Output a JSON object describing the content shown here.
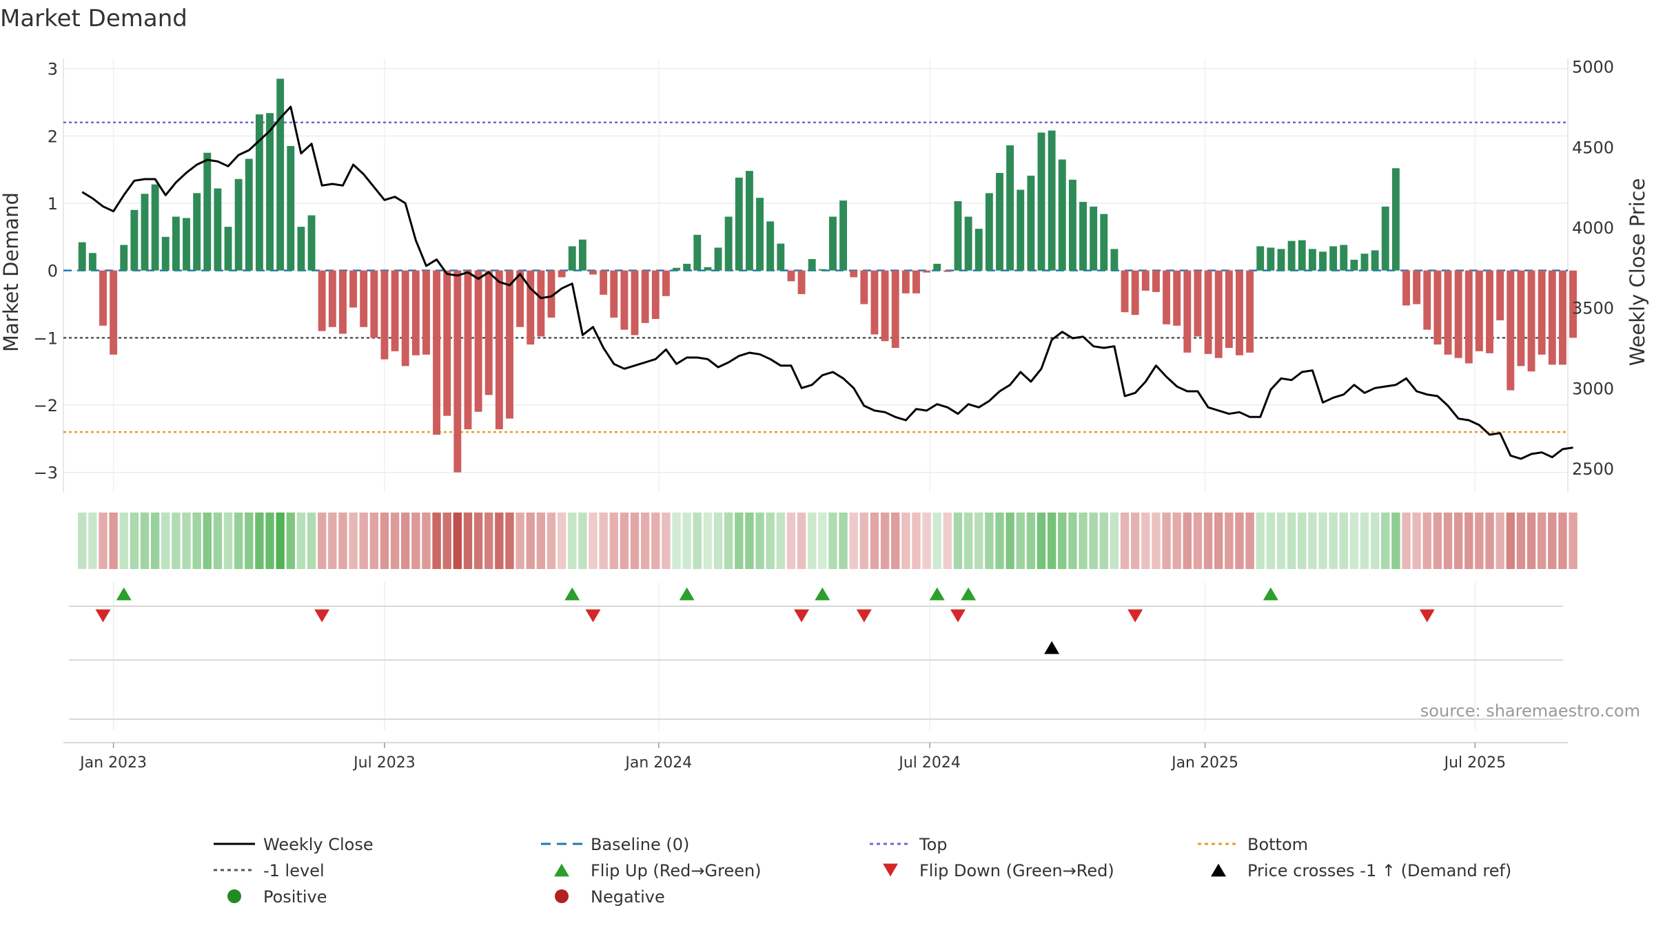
{
  "title": "Market Demand",
  "source": "source: sharemaestro.com",
  "colors": {
    "positive": "#2e8b57",
    "negative": "#cd5c5c",
    "close": "#000000",
    "baseline": "#1f77b4",
    "top": "#6a6ad0",
    "bottom": "#e0a020",
    "level": "#555555",
    "flip_up": "#2ca02c",
    "flip_down": "#d62728",
    "cross": "#000000",
    "pos_dot": "#228b22",
    "neg_dot": "#b22222"
  },
  "chart_data": {
    "type": "bar",
    "title": "Market Demand",
    "ylabel": "Market Demand",
    "y2label": "Weekly Close Price",
    "ylim": [
      -3.3,
      3.15
    ],
    "y2lim": [
      2350,
      5050
    ],
    "yticks": [
      3,
      2,
      1,
      0,
      -1,
      -2,
      -3
    ],
    "ytick_labels": [
      "3",
      "2",
      "1",
      "0",
      "−1",
      "−2",
      "−3"
    ],
    "y2ticks": [
      5000,
      4500,
      4000,
      3500,
      3000,
      2500
    ],
    "y2tick_labels": [
      "5000",
      "4500",
      "4000",
      "3500",
      "3000",
      "2500"
    ],
    "x_start_week": -3,
    "x_range_weeks": [
      -4.8,
      139.5
    ],
    "xticks": [
      {
        "label": "Jan 2023",
        "week": 0
      },
      {
        "label": "Jul 2023",
        "week": 26
      },
      {
        "label": "Jan 2024",
        "week": 52.3
      },
      {
        "label": "Jul 2024",
        "week": 78.3
      },
      {
        "label": "Jan 2025",
        "week": 104.7
      },
      {
        "label": "Jul 2025",
        "week": 130.6
      }
    ],
    "reference_lines": {
      "top": 2.2,
      "minus_one": -1.0,
      "bottom": -2.4,
      "baseline": 0
    },
    "demand": [
      0.42,
      0.26,
      -0.82,
      -1.25,
      0.38,
      0.9,
      1.14,
      1.28,
      0.5,
      0.8,
      0.78,
      1.15,
      1.75,
      1.22,
      0.65,
      1.36,
      1.66,
      2.32,
      2.34,
      2.85,
      1.85,
      0.65,
      0.82,
      -0.9,
      -0.84,
      -0.94,
      -0.55,
      -0.84,
      -1.0,
      -1.32,
      -1.2,
      -1.42,
      -1.26,
      -1.25,
      -2.44,
      -2.16,
      -3.0,
      -2.36,
      -2.1,
      -1.85,
      -2.36,
      -2.2,
      -0.84,
      -1.1,
      -0.98,
      -0.7,
      -0.1,
      0.36,
      0.46,
      -0.06,
      -0.36,
      -0.7,
      -0.88,
      -0.96,
      -0.78,
      -0.72,
      -0.38,
      0.04,
      0.1,
      0.53,
      0.05,
      0.34,
      0.8,
      1.38,
      1.48,
      1.08,
      0.73,
      0.4,
      -0.16,
      -0.35,
      0.17,
      0.02,
      0.8,
      1.04,
      -0.1,
      -0.5,
      -0.95,
      -1.05,
      -1.15,
      -0.34,
      -0.34,
      -0.03,
      0.1,
      -0.02,
      1.03,
      0.8,
      0.62,
      1.15,
      1.45,
      1.86,
      1.2,
      1.41,
      2.05,
      2.08,
      1.65,
      1.35,
      1.02,
      0.95,
      0.84,
      0.32,
      -0.62,
      -0.66,
      -0.3,
      -0.32,
      -0.8,
      -0.82,
      -1.22,
      -0.98,
      -1.24,
      -1.3,
      -1.15,
      -1.26,
      -1.22,
      0.36,
      0.34,
      0.32,
      0.44,
      0.45,
      0.32,
      0.28,
      0.36,
      0.38,
      0.16,
      0.25,
      0.3,
      0.95,
      1.52,
      -0.52,
      -0.5,
      -0.88,
      -1.1,
      -1.25,
      -1.3,
      -1.38,
      -1.2,
      -1.23,
      -0.74,
      -1.78,
      -1.42,
      -1.5,
      -1.25,
      -1.4,
      -1.4,
      -1.0
    ],
    "weekly_close": [
      4220,
      4180,
      4130,
      4100,
      4200,
      4290,
      4300,
      4300,
      4200,
      4280,
      4340,
      4390,
      4420,
      4410,
      4380,
      4450,
      4480,
      4540,
      4600,
      4680,
      4750,
      4460,
      4520,
      4260,
      4270,
      4260,
      4390,
      4330,
      4250,
      4170,
      4190,
      4150,
      3920,
      3760,
      3800,
      3710,
      3700,
      3720,
      3680,
      3720,
      3660,
      3640,
      3710,
      3620,
      3560,
      3570,
      3620,
      3650,
      3330,
      3380,
      3250,
      3150,
      3120,
      3140,
      3160,
      3180,
      3240,
      3150,
      3190,
      3190,
      3180,
      3130,
      3160,
      3200,
      3220,
      3210,
      3180,
      3140,
      3140,
      3000,
      3020,
      3080,
      3100,
      3060,
      3000,
      2890,
      2860,
      2850,
      2820,
      2800,
      2870,
      2860,
      2900,
      2880,
      2840,
      2900,
      2880,
      2920,
      2980,
      3020,
      3100,
      3040,
      3120,
      3300,
      3350,
      3310,
      3320,
      3260,
      3250,
      3260,
      2950,
      2970,
      3040,
      3140,
      3070,
      3010,
      2980,
      2980,
      2880,
      2860,
      2840,
      2850,
      2820,
      2820,
      2990,
      3060,
      3050,
      3100,
      3110,
      2910,
      2940,
      2960,
      3020,
      2970,
      3000,
      3010,
      3020,
      3060,
      2980,
      2960,
      2950,
      2890,
      2810,
      2800,
      2770,
      2710,
      2720,
      2580,
      2560,
      2590,
      2600,
      2570,
      2620,
      2630
    ],
    "flip_up_weeks": [
      1,
      44,
      55,
      68,
      79,
      82,
      111
    ],
    "flip_down_weeks": [
      -1,
      20,
      46,
      66,
      72,
      81,
      98,
      126
    ],
    "price_cross_weeks": [
      90
    ],
    "legend": [
      {
        "label": "Weekly Close",
        "marker": "line-solid",
        "color": "#000000"
      },
      {
        "label": "Baseline (0)",
        "marker": "line-dashed",
        "color": "#1f77b4"
      },
      {
        "label": "Top",
        "marker": "line-dotted",
        "color": "#6a6ad0"
      },
      {
        "label": "Bottom",
        "marker": "line-dotted",
        "color": "#e0a020"
      },
      {
        "label": "-1 level",
        "marker": "line-dotted",
        "color": "#555555"
      },
      {
        "label": "Flip Up (Red→Green)",
        "marker": "triangle-up",
        "color": "#2ca02c"
      },
      {
        "label": "Flip Down (Green→Red)",
        "marker": "triangle-down",
        "color": "#d62728"
      },
      {
        "label": "Price crosses -1 ↑ (Demand ref)",
        "marker": "triangle-up",
        "color": "#000000"
      },
      {
        "label": "Positive",
        "marker": "dot",
        "color": "#228b22"
      },
      {
        "label": "Negative",
        "marker": "dot",
        "color": "#b22222"
      }
    ]
  }
}
